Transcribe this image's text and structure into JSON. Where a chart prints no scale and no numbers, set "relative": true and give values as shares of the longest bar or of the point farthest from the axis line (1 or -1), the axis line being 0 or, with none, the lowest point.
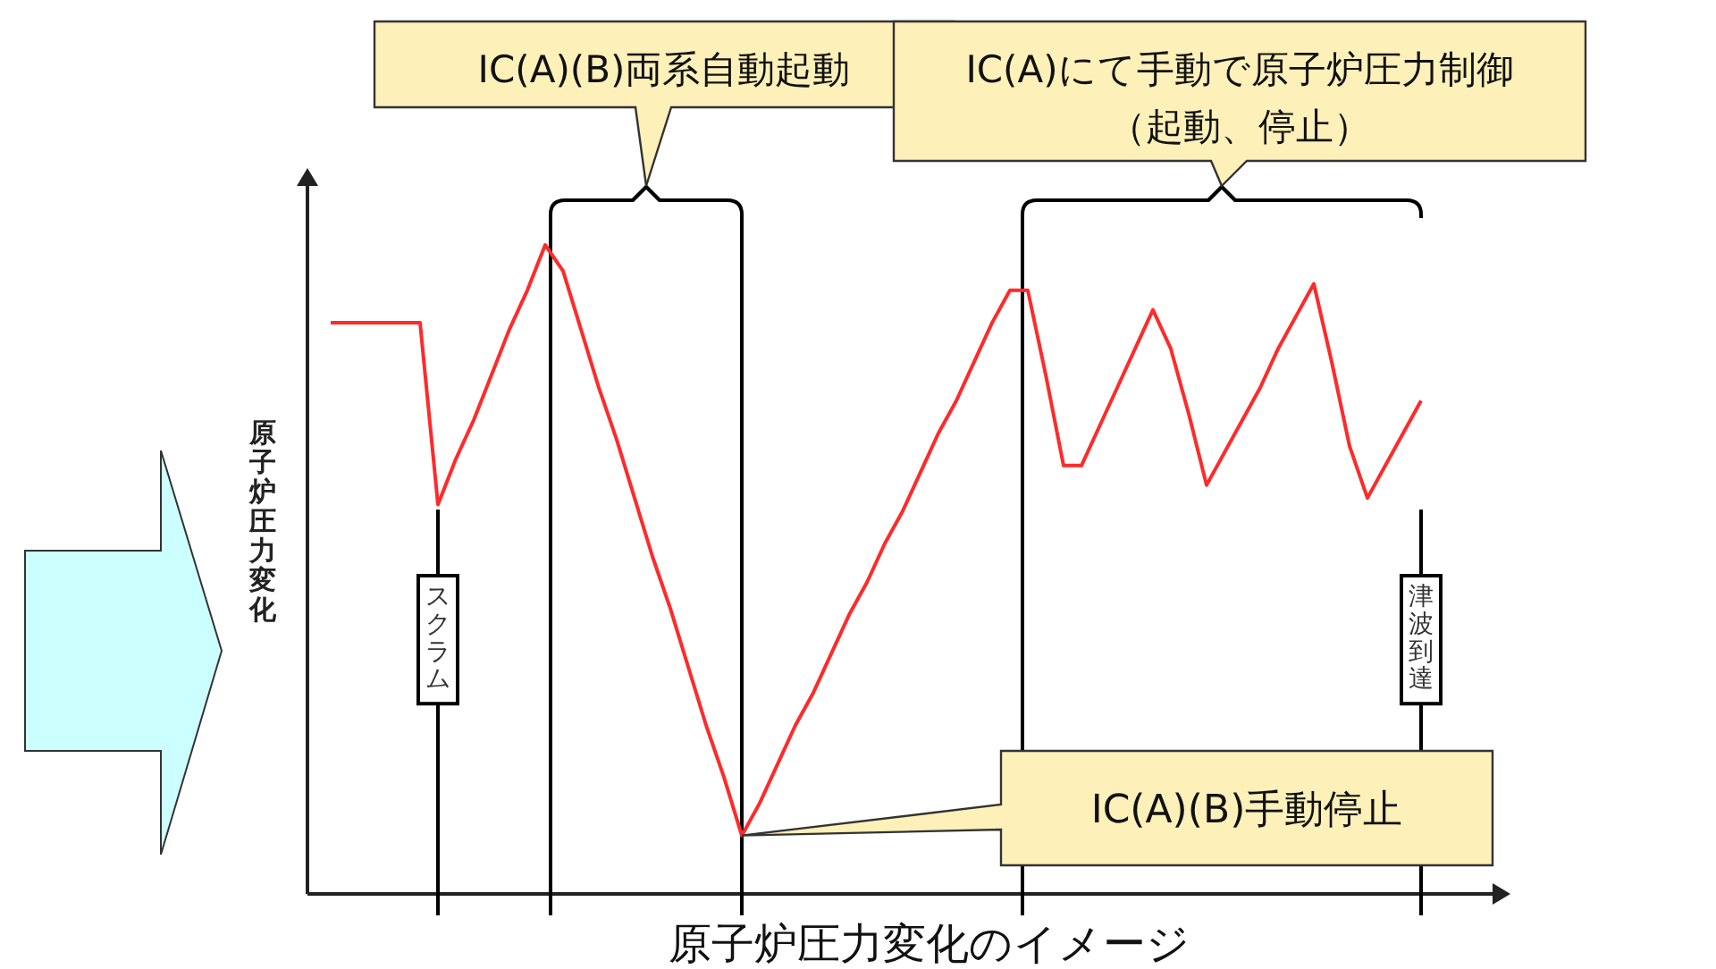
{
  "chart_data": {
    "type": "line",
    "relative": true,
    "xlabel": "原子炉圧力変化のイメージ",
    "ylabel": "原子炉圧力変化",
    "categories": [
      null,
      null,
      null,
      null,
      null,
      null,
      null,
      null,
      null,
      null,
      null,
      null,
      null,
      null,
      null,
      null,
      null,
      null,
      null,
      null,
      null,
      null,
      null,
      null,
      null,
      null,
      null,
      null,
      null,
      null,
      null,
      null,
      null,
      null,
      null,
      null,
      null,
      null,
      null,
      null,
      null,
      null,
      null,
      null,
      null,
      null,
      null,
      null,
      null,
      null,
      null,
      null,
      null,
      null,
      null,
      null,
      null,
      null,
      null,
      null,
      null,
      null
    ],
    "series": [
      {
        "color": "#ff2a2a",
        "values": [
          0.88,
          0.88,
          0.88,
          0.88,
          0.88,
          0.88,
          0.6,
          0.67,
          0.73,
          0.8,
          0.87,
          0.93,
          1.0,
          0.96,
          0.87,
          0.78,
          0.7,
          0.61,
          0.52,
          0.44,
          0.35,
          0.26,
          0.18,
          0.09,
          0.14,
          0.2,
          0.26,
          0.31,
          0.37,
          0.43,
          0.48,
          0.54,
          0.59,
          0.65,
          0.71,
          0.76,
          0.82,
          0.88,
          0.93,
          0.93,
          0.8,
          0.66,
          0.66,
          0.72,
          0.78,
          0.84,
          0.9,
          0.84,
          0.74,
          0.63,
          0.68,
          0.73,
          0.78,
          0.84,
          0.89,
          0.94,
          0.82,
          0.69,
          0.61,
          0.66,
          0.71,
          0.76
        ]
      }
    ],
    "annotations": [
      "IC(A)(B)両系自動起動",
      "IC(A)にて手動で原子炉圧力制御（起動、停止）",
      "IC(A)(B)手動停止",
      "スクラム",
      "津波到達"
    ],
    "line_style": "solid"
  }
}
